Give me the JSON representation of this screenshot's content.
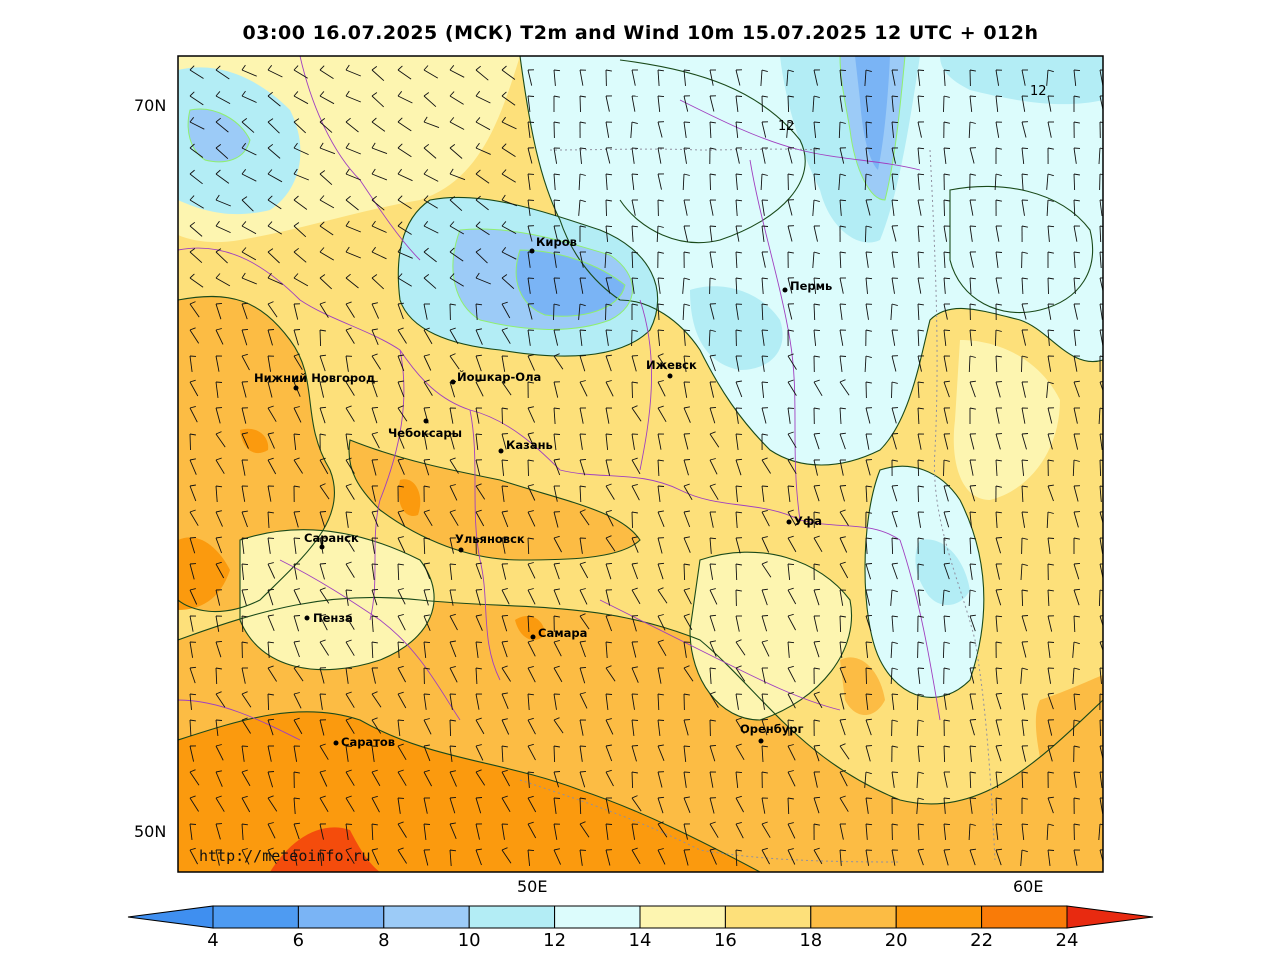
{
  "title": "03:00 16.07.2025 (МСК) T2m and Wind 10m 15.07.2025 12 UTC + 012h",
  "watermark": "http://meteoinfo.ru",
  "lat_labels": [
    {
      "text": "70N",
      "value": 70
    },
    {
      "text": "50N",
      "value": 50
    }
  ],
  "lon_labels": [
    {
      "text": "50E",
      "value": 50
    },
    {
      "text": "60E",
      "value": 60
    }
  ],
  "cities": [
    {
      "name": "Киров",
      "label": "Киров"
    },
    {
      "name": "Пермь",
      "label": "Пермь"
    },
    {
      "name": "Ижевск",
      "label": "Ижевск"
    },
    {
      "name": "Нижний Новгород",
      "label": "Нижний Новгород"
    },
    {
      "name": "Йошкар-Ола",
      "label": "Йошкар-Ола"
    },
    {
      "name": "Чебоксары",
      "label": "Чебоксары"
    },
    {
      "name": "Казань",
      "label": "Казань"
    },
    {
      "name": "Уфа",
      "label": "Уфа"
    },
    {
      "name": "Саранск",
      "label": "Саранск"
    },
    {
      "name": "Ульяновск",
      "label": "Ульяновск"
    },
    {
      "name": "Пенза",
      "label": "Пенза"
    },
    {
      "name": "Самара",
      "label": "Самара"
    },
    {
      "name": "Оренбург",
      "label": "Оренбург"
    },
    {
      "name": "Саратов",
      "label": "Саратов"
    }
  ],
  "contour_labels": [
    "12",
    "12"
  ],
  "colorbar": {
    "ticks": [
      "4",
      "6",
      "8",
      "10",
      "12",
      "14",
      "16",
      "18",
      "20",
      "22",
      "24"
    ],
    "colors": [
      "#3f8ff0",
      "#4e9bf2",
      "#7ab4f5",
      "#9ccbf7",
      "#b3edf5",
      "#dcfcfc",
      "#fdf5b0",
      "#fde07a",
      "#fcbc44",
      "#fb9a0e",
      "#f97b08",
      "#f44c0c",
      "#e82a10"
    ]
  }
}
